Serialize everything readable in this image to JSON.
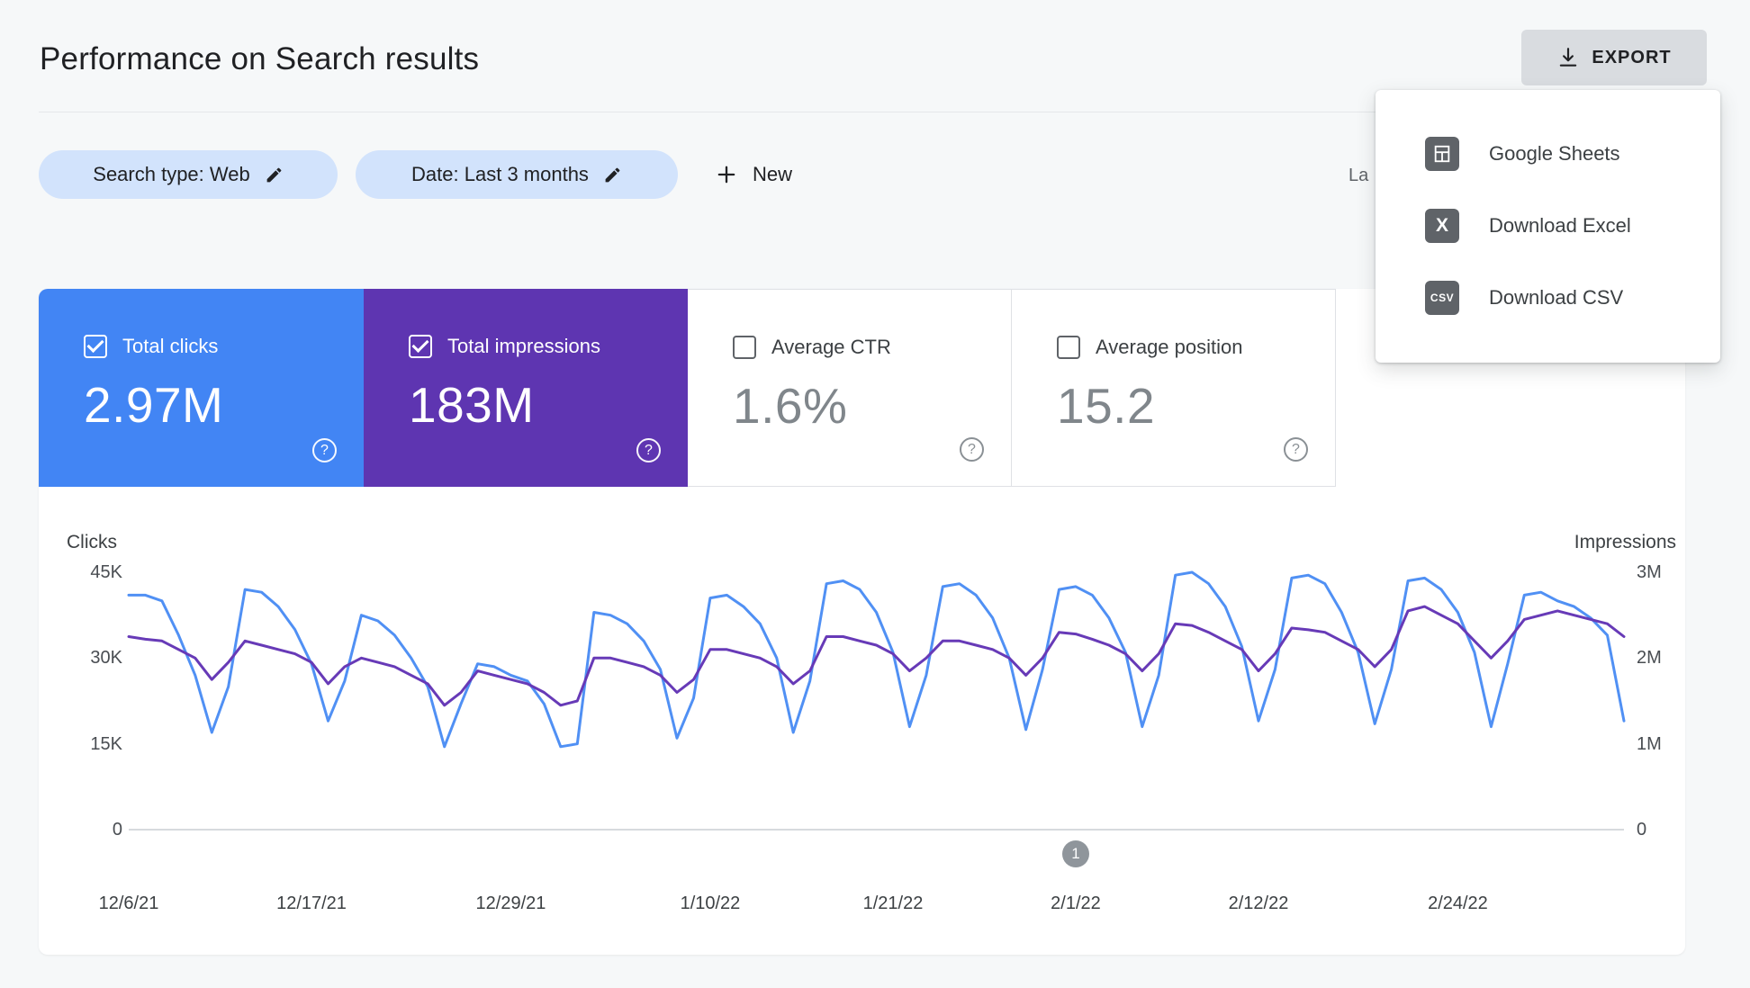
{
  "header": {
    "title": "Performance on Search results",
    "export_label": "EXPORT"
  },
  "filters": {
    "search_type_chip": "Search type: Web",
    "date_chip": "Date: Last 3 months",
    "new_label": "New",
    "last_updated_partial": "La"
  },
  "export_menu": {
    "items": [
      {
        "label": "Google Sheets",
        "icon": "google-sheets-icon",
        "icon_text": ""
      },
      {
        "label": "Download Excel",
        "icon": "excel-icon",
        "icon_text": "X"
      },
      {
        "label": "Download CSV",
        "icon": "csv-icon",
        "icon_text": "CSV"
      }
    ]
  },
  "metrics": [
    {
      "label": "Total clicks",
      "value": "2.97M",
      "selected": true,
      "color": "#4285f4"
    },
    {
      "label": "Total impressions",
      "value": "183M",
      "selected": true,
      "color": "#5e35b1"
    },
    {
      "label": "Average CTR",
      "value": "1.6%",
      "selected": false
    },
    {
      "label": "Average position",
      "value": "15.2",
      "selected": false
    }
  ],
  "chart_data": {
    "type": "line",
    "legend": "none",
    "grid": "baseline-only",
    "x_ticks": [
      {
        "day": 0,
        "label": "12/6/21"
      },
      {
        "day": 11,
        "label": "12/17/21"
      },
      {
        "day": 23,
        "label": "12/29/21"
      },
      {
        "day": 35,
        "label": "1/10/22"
      },
      {
        "day": 46,
        "label": "1/21/22"
      },
      {
        "day": 57,
        "label": "2/1/22"
      },
      {
        "day": 68,
        "label": "2/12/22"
      },
      {
        "day": 80,
        "label": "2/24/22"
      }
    ],
    "left_axis": {
      "title": "Clicks",
      "ticks": [
        "45K",
        "30K",
        "15K",
        "0"
      ],
      "max": 45000
    },
    "right_axis": {
      "title": "Impressions",
      "ticks": [
        "3M",
        "2M",
        "1M",
        "0"
      ],
      "max": 3000000
    },
    "series": [
      {
        "name": "Clicks",
        "axis": "left",
        "unit": "thousands",
        "axis_max": 45,
        "color": "#5090f4",
        "values": [
          41,
          41,
          40,
          34,
          27,
          17,
          25,
          42,
          41.5,
          39,
          35,
          29,
          19,
          26,
          37.5,
          36.5,
          34,
          30,
          25,
          14.5,
          22,
          29,
          28.5,
          27,
          26,
          22,
          14.5,
          15,
          38,
          37.5,
          36,
          33,
          28,
          16,
          23,
          40.5,
          41,
          39,
          36,
          30,
          17,
          26,
          43,
          43.5,
          42,
          38,
          31,
          18,
          27,
          42.5,
          43,
          41,
          37,
          30,
          17.5,
          28,
          42,
          42.5,
          41,
          37,
          31,
          18,
          27,
          44.5,
          45,
          43,
          39,
          32,
          19,
          28,
          44,
          44.5,
          43,
          38,
          31,
          18.5,
          28,
          43.5,
          44,
          42,
          38,
          31,
          18,
          29,
          41,
          41.5,
          40,
          39,
          37,
          34,
          19
        ]
      },
      {
        "name": "Impressions",
        "axis": "right",
        "unit": "millions",
        "axis_max": 3,
        "color": "#673ab7",
        "values": [
          2.25,
          2.22,
          2.2,
          2.1,
          2.0,
          1.75,
          1.95,
          2.2,
          2.15,
          2.1,
          2.05,
          1.95,
          1.7,
          1.9,
          2.0,
          1.95,
          1.9,
          1.8,
          1.7,
          1.45,
          1.6,
          1.85,
          1.8,
          1.75,
          1.7,
          1.6,
          1.45,
          1.5,
          2.0,
          2.0,
          1.95,
          1.9,
          1.8,
          1.6,
          1.75,
          2.1,
          2.1,
          2.05,
          2.0,
          1.9,
          1.7,
          1.85,
          2.25,
          2.25,
          2.2,
          2.15,
          2.05,
          1.85,
          2.0,
          2.2,
          2.2,
          2.15,
          2.1,
          2.0,
          1.8,
          2.0,
          2.3,
          2.28,
          2.22,
          2.15,
          2.05,
          1.85,
          2.05,
          2.4,
          2.38,
          2.3,
          2.2,
          2.1,
          1.85,
          2.05,
          2.35,
          2.33,
          2.3,
          2.2,
          2.1,
          1.9,
          2.1,
          2.55,
          2.6,
          2.5,
          2.4,
          2.2,
          2.0,
          2.2,
          2.45,
          2.5,
          2.55,
          2.5,
          2.45,
          2.4,
          2.25
        ]
      }
    ],
    "annotations": [
      {
        "day": 57,
        "label": "1"
      }
    ]
  }
}
